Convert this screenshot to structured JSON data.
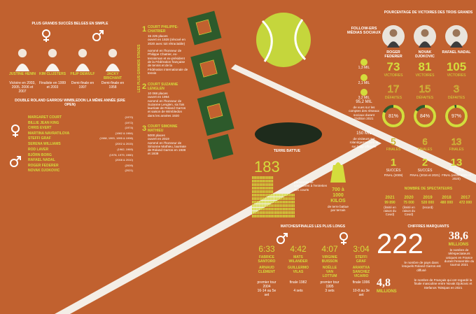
{
  "belgian": {
    "title": "PLUS GRANDS SUCCÈS BELGES EN SIMPLE",
    "players": [
      {
        "name": "JUSTINE HENIN",
        "detail": "Victoire en 2003, 2005, 2006 et 2007"
      },
      {
        "name": "KIM CLIJSTERS",
        "detail": "Finaliste en 1999 et 2003"
      },
      {
        "name": "FILIP DEWULF",
        "detail": "Demi-finale en 1997"
      },
      {
        "name": "JACKY BRICHANT",
        "detail": "Demi-finale en 1958"
      }
    ]
  },
  "double": {
    "title": "DOUBLE ROLAND GARROS/ WIMBLEDON LA MÊME ANNÉE (ERE OPEN)",
    "women": [
      {
        "name": "MARGARET COURT",
        "years": "(1970)"
      },
      {
        "name": "BILLIE JEAN KING",
        "years": "(1972)"
      },
      {
        "name": "CHRIS EVERT",
        "years": "(1974)"
      },
      {
        "name": "MARTINA NAVRATILOVA",
        "years": "(1982 & 1984)"
      },
      {
        "name": "STEFFI GRAF",
        "years": "(1988, 1993, 1995 & 1996)"
      },
      {
        "name": "SERENA WILLIAMS",
        "years": "(2002 & 2015)"
      }
    ],
    "men": [
      {
        "name": "ROD LAVER",
        "years": "(1962, 1969)"
      },
      {
        "name": "BJÖRN BORG",
        "years": "(1978, 1979, 1980)"
      },
      {
        "name": "RAFAEL NADAL",
        "years": "(2008 & 2010)"
      },
      {
        "name": "ROGER FEDERER",
        "years": "(2009)"
      },
      {
        "name": "NOVAK DJOKOVIC",
        "years": "(2021)"
      }
    ]
  },
  "stadiums": {
    "title": "LES PLUS GRANDS STADES",
    "courts": [
      {
        "number": "1",
        "name": "COURT PHILIPPE-CHATRIER",
        "facts": [
          "15 225 places",
          "ouvert en 1928 (rénové en 2020 avec toit rétractable)",
          "nommé en l'honneur de Philippe Chatrier, ex-tennisman et ex-président de la Fédération française de tennis et de la Fédération internationale de tennis"
        ]
      },
      {
        "number": "2",
        "name": "COURT SUZANNE LENGLEN",
        "facts": [
          "10 068 places",
          "ouvert en 1994",
          "nommé en l'honneur de Suzanne Lenglen, six fois lauréate de Roland Garros et saison de Wimbledon dans les années 1920"
        ]
      },
      {
        "number": "3",
        "name": "COURT SIMONNE MATHIEU",
        "facts": [
          "5000 places",
          "ouvert en 2019",
          "nommé en l'honneur de Simonne Mathieu, lauréate de Roland Garros en 1938 et 1939"
        ]
      }
    ]
  },
  "social": {
    "title": "FOLLOW-ERS MÉDIAS SOCIAUX",
    "platforms": [
      "1,3 MIL",
      "2,1 MIL",
      "3,2 MIL"
    ],
    "views": {
      "value": "95,2 MIL",
      "text": "de vues sur les comptes des réseaux sociaux durant l'édition 2021"
    },
    "visitors": {
      "value": "150 MIL",
      "text": "de visiteurs sur rolandgarros.com et sur l'app officielle"
    }
  },
  "big3": {
    "title": "POURCENTAGE DE VICTOIRES DES TROIS GRANDS",
    "labels": {
      "wins": "VICTOIRES",
      "losses": "DÉFAITES",
      "finals": "FINALES",
      "titles": "SUCCÈS"
    },
    "players": [
      {
        "name": "ROGER FEDERER",
        "wins": 73,
        "losses": 17,
        "pct": 81,
        "pct_label": "81%",
        "finals": 5,
        "titles": 1,
        "titles_note": "FINAL (2009)"
      },
      {
        "name": "NOVAK DJOKOVIC",
        "wins": 81,
        "losses": 15,
        "pct": 84,
        "pct_label": "84%",
        "finals": 6,
        "titles": 2,
        "titles_note": "FINAL (2016 et 2021)"
      },
      {
        "name": "RAFAEL NADAL",
        "wins": 105,
        "losses": 3,
        "pct": 97,
        "pct_label": "97%",
        "finals": 13,
        "titles": 13,
        "titles_note": "FINAL (entre 2005 et 2020)"
      }
    ]
  },
  "spectators": {
    "title": "NOMBRE DE SPECTATEURS",
    "years": [
      {
        "year": "2021",
        "value": "99 890",
        "note": "(limité en raison du Covid)"
      },
      {
        "year": "2020",
        "value": "75 000",
        "note": "(limité en raison du Covid)"
      },
      {
        "year": "2019",
        "value": "520 000",
        "note": "(record)"
      },
      {
        "year": "2018",
        "value": "480 000",
        "note": ""
      },
      {
        "year": "2017",
        "value": "472 000",
        "note": ""
      }
    ]
  },
  "clay": {
    "title": "TERRE BATTUE",
    "staff": 183,
    "staff_text": "personnes se consacrent à l'entretien des courts",
    "kilos": "700 à 1000 KILOS",
    "kilos_text": "de terre battue par terrain"
  },
  "matches": {
    "title": "MATCHES/FINALES LES PLUS LONGS",
    "items": [
      {
        "time": "6:33",
        "player1": "FABRICE SANTORO",
        "player2": "ARNAUD CLÉMENT",
        "round": "premier tour 2004",
        "detail": "16-14 au 5e set"
      },
      {
        "time": "4:42",
        "player1": "MATS WILANDER",
        "player2": "GUILLERMO VILAS",
        "round": "finale 1982",
        "detail": "4 sets"
      },
      {
        "time": "4:07",
        "player1": "VIRGINIE BUISSON",
        "player2": "NOËLLE VAN LOTTUM",
        "round": "premier tour 1995",
        "detail": "3 sets"
      },
      {
        "time": "3:04",
        "player1": "STEFFI GRAF",
        "player2": "ARANTXA SANCHEZ VICARIO",
        "round": "finale 1996",
        "detail": "10-8 au 3e set"
      }
    ]
  },
  "figures": {
    "title": "CHIFFRES MARQUANTS",
    "countries": 222,
    "countries_text": "le nombre de pays dans lesquels Roland Garros est diffusé",
    "viewers": "38,6",
    "viewers_unit": "MILLIONS",
    "viewers_text": "le nombre de téléspectateurs uniques en France durant l'ensemble du tournoi 2021",
    "final": "4,8",
    "final_unit": "MILLIONS",
    "final_text": "le nombre de Français qui ont regardé la finale masculine entre Novak Djokovic et Stefanos Tsitsipas en 2021"
  }
}
